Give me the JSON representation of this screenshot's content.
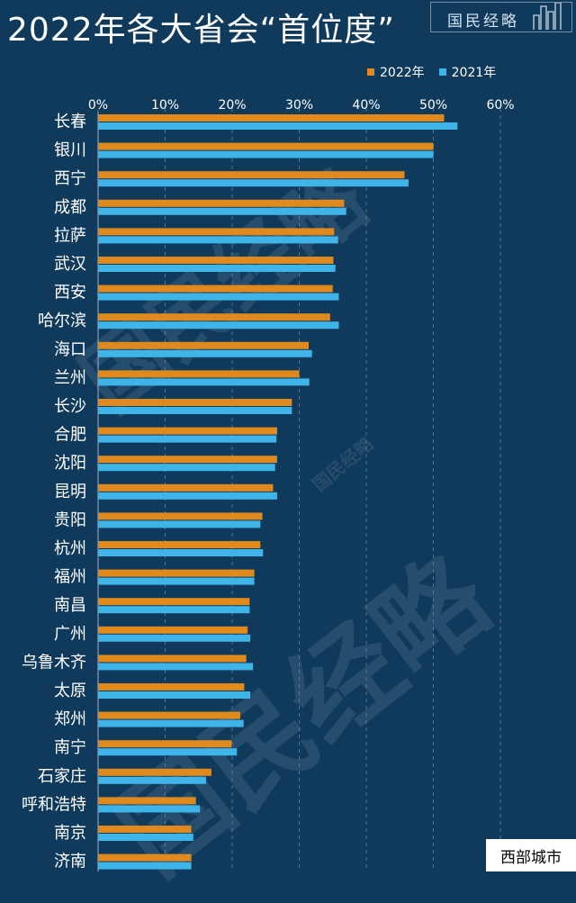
{
  "header": {
    "title": "2022年各大省会“首位度”",
    "brand": "国民经略"
  },
  "footer": {
    "tag": "西部城市"
  },
  "colors": {
    "background": "#0f3a5c",
    "series_2022": "#e08a1e",
    "series_2021": "#3fb4e8",
    "grid": "#6f8aa3"
  },
  "chart_data": {
    "type": "bar",
    "orientation": "horizontal",
    "categories": [
      "长春",
      "银川",
      "西宁",
      "成都",
      "拉萨",
      "武汉",
      "西安",
      "哈尔滨",
      "海口",
      "兰州",
      "长沙",
      "合肥",
      "沈阳",
      "昆明",
      "贵阳",
      "杭州",
      "福州",
      "南昌",
      "广州",
      "乌鲁木齐",
      "太原",
      "郑州",
      "南宁",
      "石家庄",
      "呼和浩特",
      "南京",
      "济南"
    ],
    "series": [
      {
        "name": "2022年",
        "color": "#e08a1e",
        "values": [
          51.6,
          50.0,
          45.7,
          36.7,
          35.2,
          35.1,
          35.0,
          34.6,
          31.4,
          30.0,
          28.9,
          26.7,
          26.7,
          26.1,
          24.5,
          24.2,
          23.3,
          22.6,
          22.3,
          22.1,
          21.8,
          21.2,
          19.9,
          16.9,
          14.6,
          13.9,
          13.9
        ]
      },
      {
        "name": "2021年",
        "color": "#3fb4e8",
        "values": [
          53.6,
          50.0,
          46.3,
          37.0,
          35.8,
          35.4,
          35.9,
          35.9,
          31.9,
          31.5,
          28.9,
          26.6,
          26.4,
          26.7,
          24.2,
          24.6,
          23.3,
          22.6,
          22.7,
          23.1,
          22.7,
          21.7,
          20.7,
          16.1,
          15.2,
          14.2,
          13.9
        ]
      }
    ],
    "x_ticks": [
      "0%",
      "10%",
      "20%",
      "30%",
      "40%",
      "50%",
      "60%"
    ],
    "xlim": [
      0,
      60
    ],
    "grid": "vertical dashed",
    "legend_position": "top-right"
  }
}
